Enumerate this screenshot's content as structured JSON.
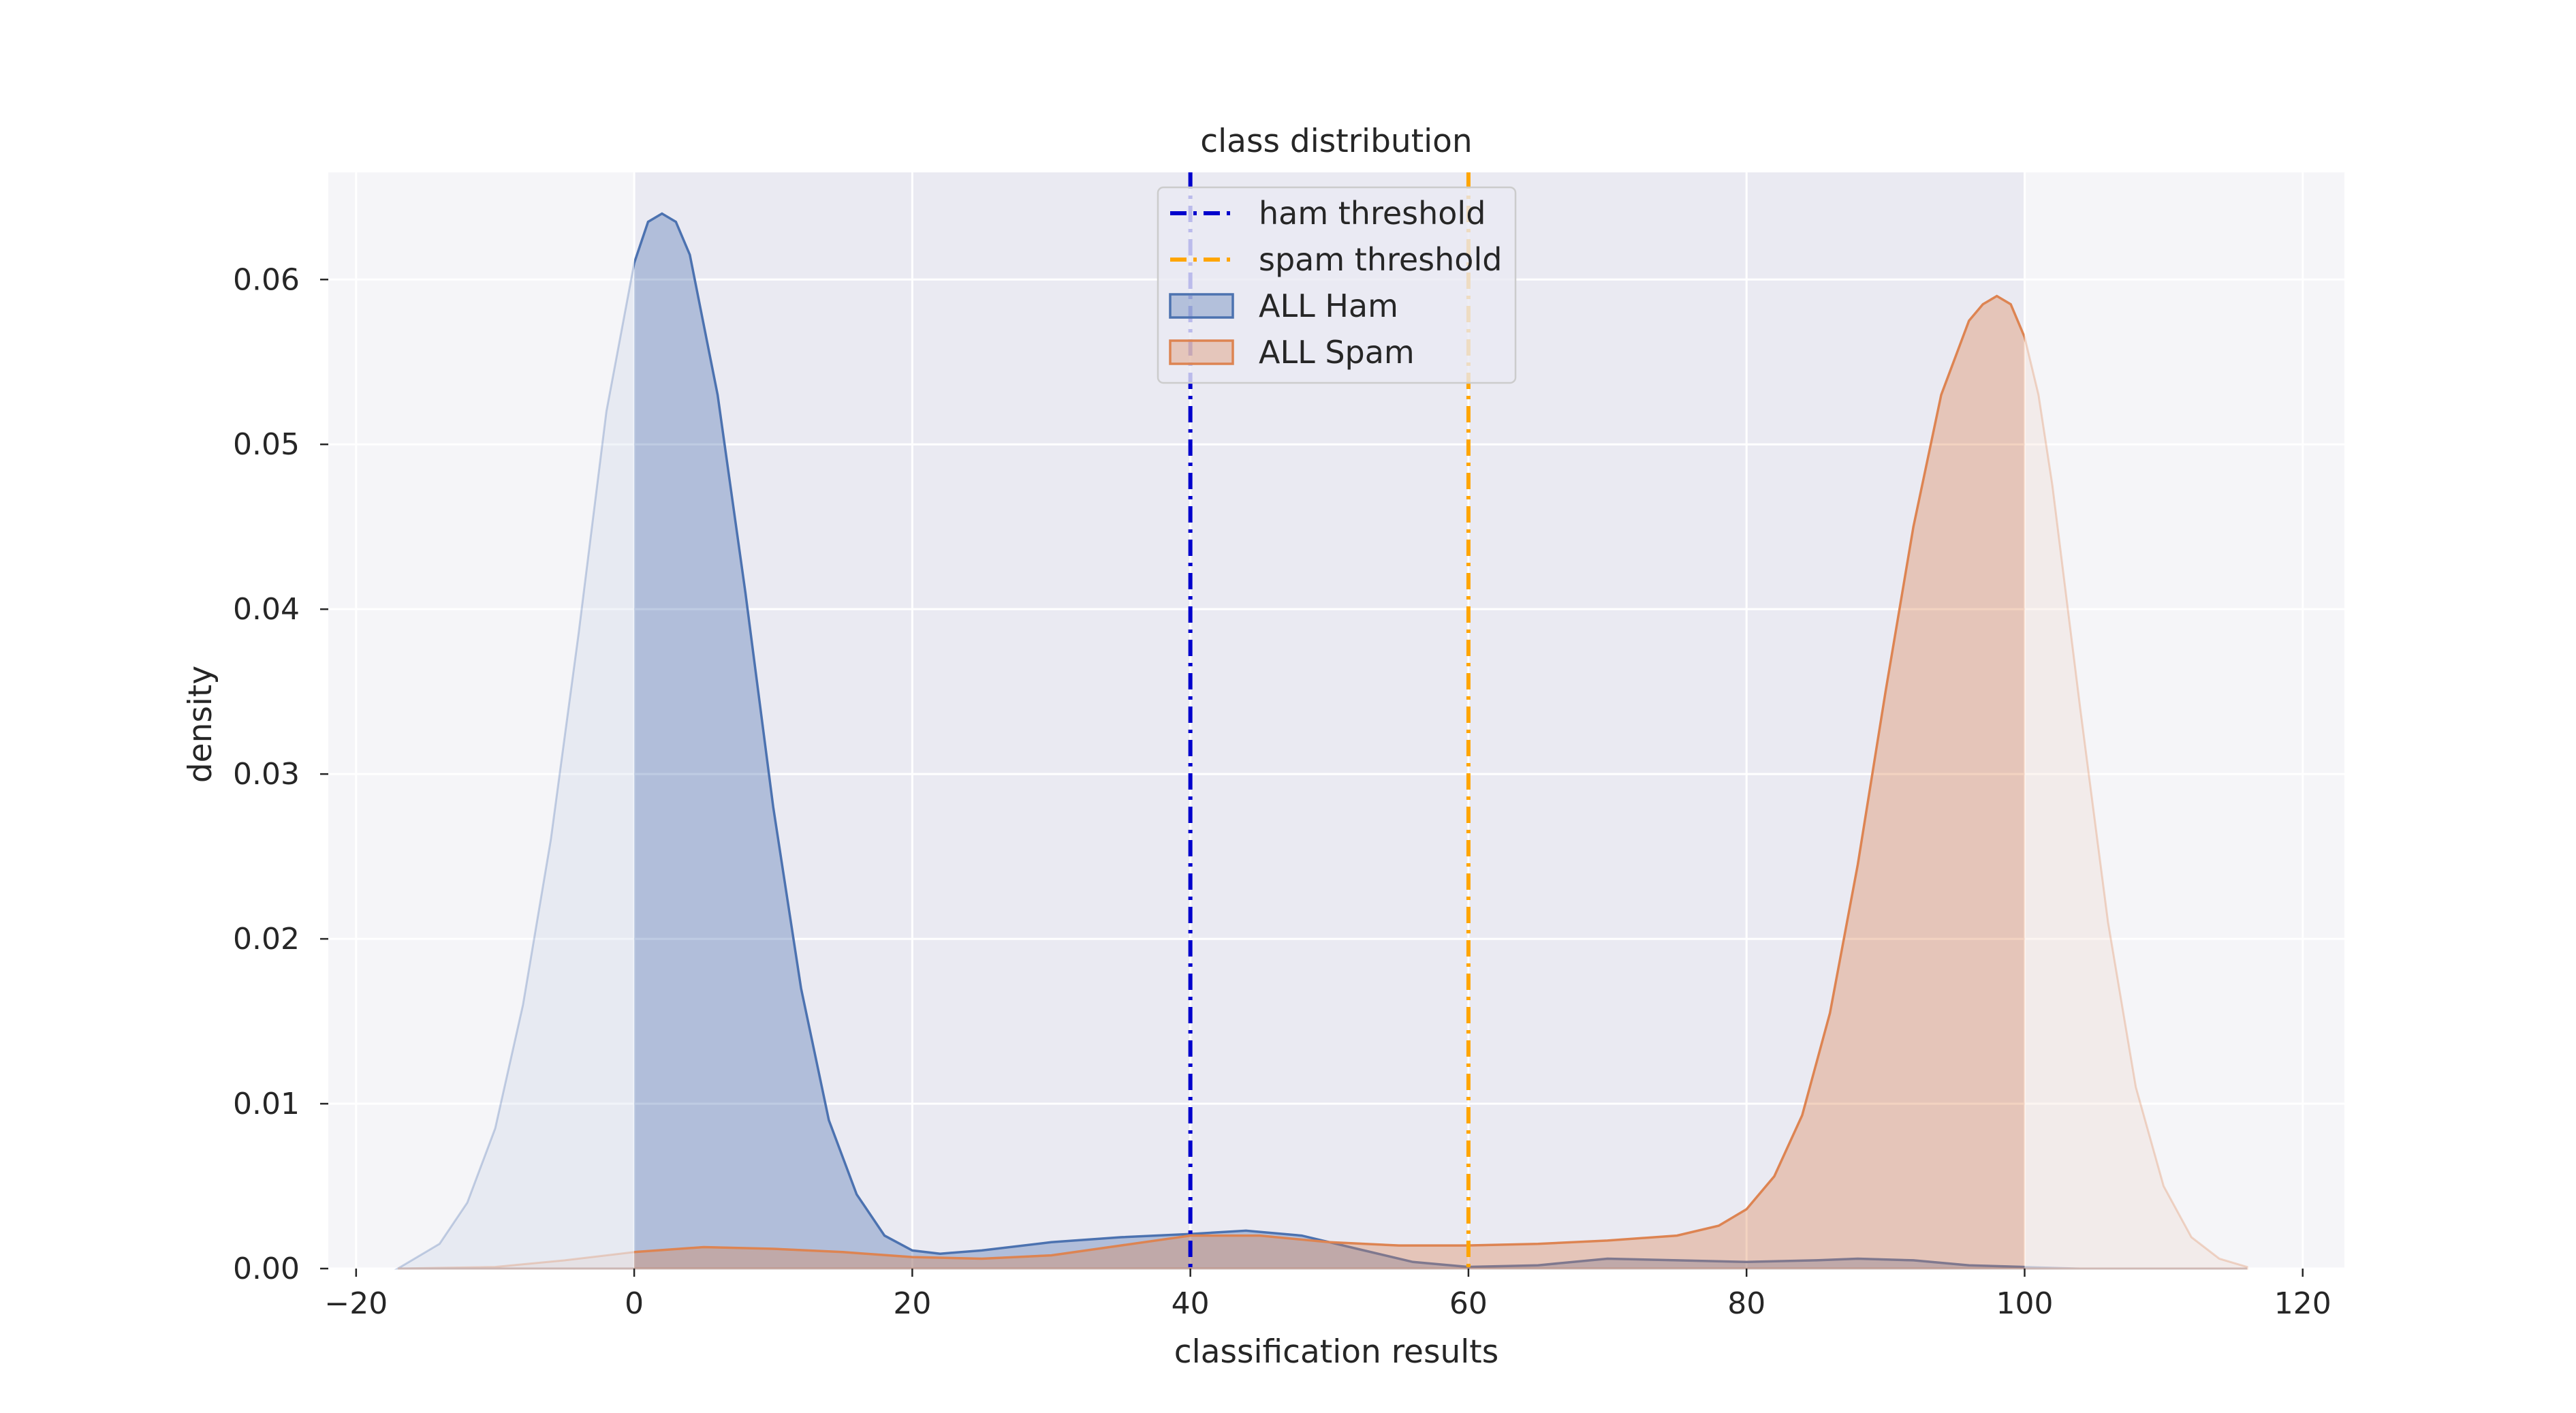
{
  "chart_data": {
    "type": "area",
    "title": "class distribution",
    "xlabel": "classification results",
    "ylabel": "density",
    "xlim": [
      -22,
      123
    ],
    "ylim": [
      0,
      0.0665
    ],
    "xticks": [
      -20,
      0,
      20,
      40,
      60,
      80,
      100,
      120
    ],
    "xtick_labels": [
      "−20",
      "0",
      "20",
      "40",
      "60",
      "80",
      "100",
      "120"
    ],
    "yticks": [
      0.0,
      0.01,
      0.02,
      0.03,
      0.04,
      0.05,
      0.06
    ],
    "ytick_labels": [
      "0.00",
      "0.01",
      "0.02",
      "0.03",
      "0.04",
      "0.05",
      "0.06"
    ],
    "grid": true,
    "legend_position": "top-center",
    "shaded_band": [
      0,
      100
    ],
    "threshold_lines": [
      {
        "name": "ham threshold",
        "x": 40,
        "color": "#0000cc",
        "style": "dashdot"
      },
      {
        "name": "spam threshold",
        "x": 60,
        "color": "#ffa500",
        "style": "dashdot"
      }
    ],
    "series": [
      {
        "name": "ALL Ham",
        "color": "#4c72b0",
        "clip_range": [
          0,
          100
        ],
        "x": [
          -17,
          -14,
          -12,
          -10,
          -8,
          -6,
          -4,
          -2,
          0,
          1,
          2,
          3,
          4,
          6,
          8,
          10,
          12,
          14,
          16,
          18,
          20,
          22,
          25,
          30,
          35,
          40,
          44,
          48,
          52,
          56,
          60,
          65,
          70,
          75,
          80,
          85,
          88,
          92,
          96,
          100,
          104,
          110,
          116
        ],
        "y": [
          0.0,
          0.0015,
          0.004,
          0.0085,
          0.016,
          0.026,
          0.0385,
          0.052,
          0.061,
          0.0635,
          0.064,
          0.0635,
          0.0615,
          0.053,
          0.041,
          0.028,
          0.017,
          0.009,
          0.0045,
          0.002,
          0.0011,
          0.0009,
          0.0011,
          0.0016,
          0.0019,
          0.0021,
          0.0023,
          0.002,
          0.0012,
          0.0004,
          0.0001,
          0.0002,
          0.0006,
          0.0005,
          0.0004,
          0.0005,
          0.0006,
          0.0005,
          0.0002,
          0.0001,
          0.0,
          0.0,
          0.0
        ]
      },
      {
        "name": "ALL Spam",
        "color": "#dd8452",
        "clip_range": [
          0,
          100
        ],
        "x": [
          -17,
          -10,
          -5,
          0,
          5,
          10,
          15,
          20,
          25,
          30,
          35,
          40,
          45,
          50,
          55,
          60,
          65,
          70,
          75,
          78,
          80,
          82,
          84,
          86,
          88,
          90,
          92,
          94,
          96,
          97,
          98,
          99,
          100,
          101,
          102,
          104,
          106,
          108,
          110,
          112,
          114,
          116
        ],
        "y": [
          0.0,
          0.0001,
          0.0005,
          0.001,
          0.0013,
          0.0012,
          0.001,
          0.0007,
          0.0006,
          0.0008,
          0.0014,
          0.002,
          0.002,
          0.0016,
          0.0014,
          0.0014,
          0.0015,
          0.0017,
          0.002,
          0.0026,
          0.0036,
          0.0056,
          0.0093,
          0.0155,
          0.0245,
          0.035,
          0.045,
          0.053,
          0.0575,
          0.0585,
          0.059,
          0.0585,
          0.0565,
          0.053,
          0.0475,
          0.034,
          0.021,
          0.011,
          0.005,
          0.0019,
          0.0006,
          0.0001
        ]
      }
    ]
  }
}
